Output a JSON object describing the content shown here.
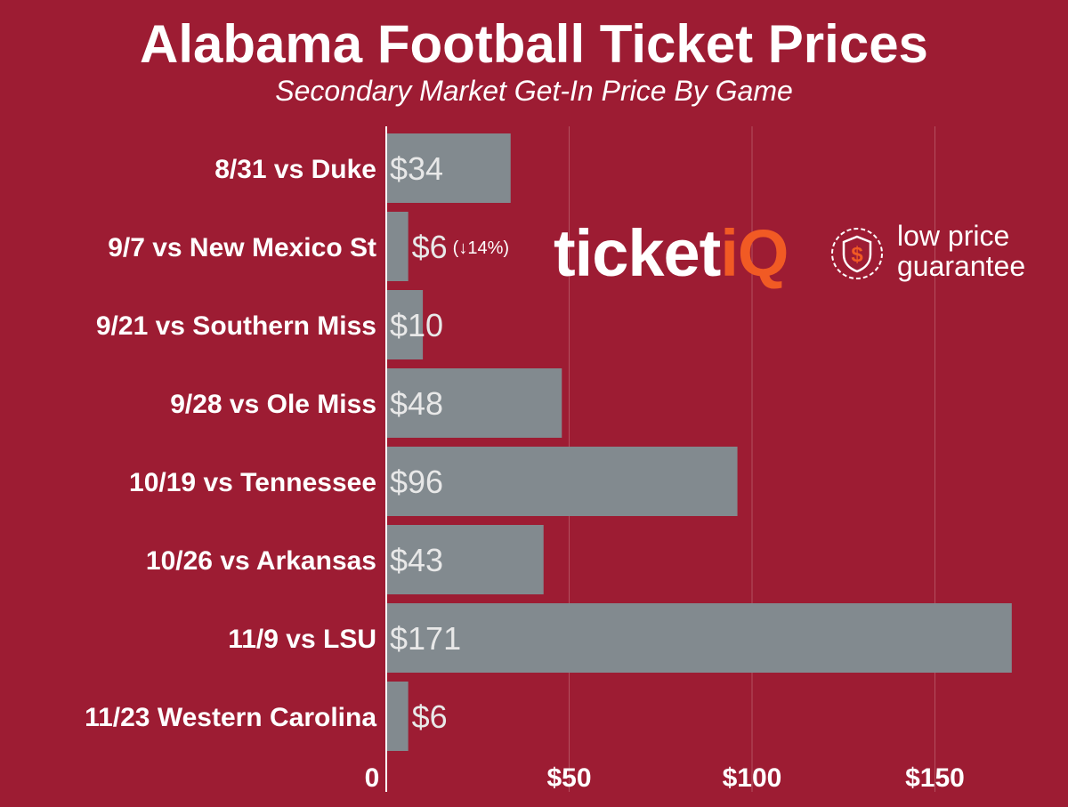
{
  "chart_data": {
    "type": "bar",
    "orientation": "horizontal",
    "title": "Alabama Football Ticket Prices",
    "subtitle": "Secondary Market Get-In Price By Game",
    "categories": [
      "8/31 vs Duke",
      "9/7 vs New Mexico St",
      "9/21 vs Southern Miss",
      "9/28 vs Ole Miss",
      "10/19 vs Tennessee",
      "10/26 vs Arkansas",
      "11/9 vs LSU",
      "11/23 Western Carolina"
    ],
    "values": [
      34,
      6,
      10,
      48,
      96,
      43,
      171,
      6
    ],
    "data_labels": [
      "$34",
      "$6",
      "$10",
      "$48",
      "$96",
      "$43",
      "$171",
      "$6"
    ],
    "annotations": [
      "",
      "(↓14%)",
      "",
      "",
      "",
      "",
      "",
      ""
    ],
    "x_ticks": [
      0,
      50,
      100,
      150
    ],
    "x_tick_labels": [
      "0",
      "$50",
      "$100",
      "$150"
    ],
    "xlim": [
      0,
      171
    ],
    "xlabel": "",
    "ylabel": "",
    "grid": true,
    "legend": "none",
    "colors": {
      "background": "#9d1c33",
      "bar": "#828a8f",
      "grid": "#b4505f",
      "text": "#ffffff"
    }
  },
  "logo": {
    "brand_prefix": "ticket",
    "brand_suffix": "iQ",
    "badge_line1": "low price",
    "badge_line2": "guarantee",
    "badge_icon": "dollar-shield-icon",
    "accent_color": "#f15a24"
  }
}
